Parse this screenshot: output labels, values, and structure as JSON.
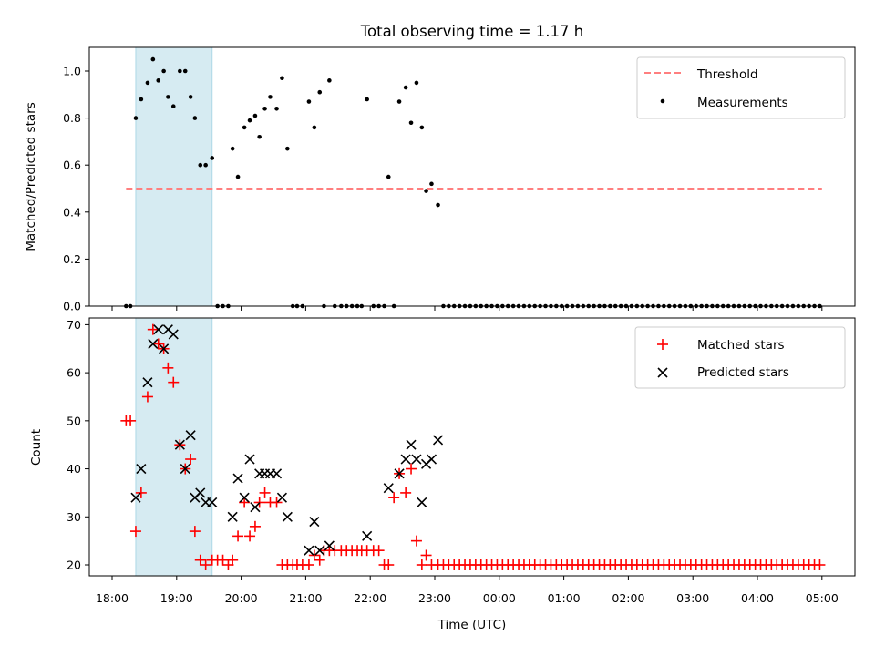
{
  "figure": {
    "title": "Total observing time = 1.17 h"
  },
  "colors": {
    "threshold": "#ff7f7f",
    "measurements": "#000000",
    "matched": "#ff0000",
    "predicted": "#000000",
    "shade": "#add8e6"
  },
  "chart_data": [
    {
      "type": "scatter",
      "ylabel": "Matched/Predicted stars",
      "xlabel": "",
      "ylim": [
        0,
        1.1
      ],
      "yticks": [
        0.0,
        0.2,
        0.4,
        0.6,
        0.8,
        1.0
      ],
      "ytick_labels": [
        "0.0",
        "0.2",
        "0.4",
        "0.6",
        "0.8",
        "1.0"
      ],
      "legend_position": "top-right",
      "legend": [
        "Threshold",
        "Measurements"
      ],
      "shaded_span": [
        "18:22",
        "19:33"
      ],
      "threshold": {
        "name": "Threshold",
        "x_range": [
          "18:13",
          "05:00"
        ],
        "value": 0.5
      },
      "measurements": {
        "name": "Measurements",
        "points": [
          [
            "18:13",
            0.0
          ],
          [
            "18:17",
            0.0
          ],
          [
            "18:22",
            0.8
          ],
          [
            "18:27",
            0.88
          ],
          [
            "18:33",
            0.95
          ],
          [
            "18:38",
            1.05
          ],
          [
            "18:43",
            0.96
          ],
          [
            "18:48",
            1.0
          ],
          [
            "18:52",
            0.89
          ],
          [
            "18:57",
            0.85
          ],
          [
            "19:03",
            1.0
          ],
          [
            "19:08",
            1.0
          ],
          [
            "19:13",
            0.89
          ],
          [
            "19:17",
            0.8
          ],
          [
            "19:22",
            0.6
          ],
          [
            "19:27",
            0.6
          ],
          [
            "19:33",
            0.63
          ],
          [
            "19:38",
            0.0
          ],
          [
            "19:43",
            0.0
          ],
          [
            "19:48",
            0.0
          ],
          [
            "19:52",
            0.67
          ],
          [
            "19:57",
            0.55
          ],
          [
            "20:03",
            0.76
          ],
          [
            "20:08",
            0.79
          ],
          [
            "20:13",
            0.81
          ],
          [
            "20:17",
            0.72
          ],
          [
            "20:22",
            0.84
          ],
          [
            "20:27",
            0.89
          ],
          [
            "20:33",
            0.84
          ],
          [
            "20:38",
            0.97
          ],
          [
            "20:43",
            0.67
          ],
          [
            "20:48",
            0.0
          ],
          [
            "20:52",
            0.0
          ],
          [
            "20:57",
            0.0
          ],
          [
            "21:03",
            0.87
          ],
          [
            "21:08",
            0.76
          ],
          [
            "21:13",
            0.91
          ],
          [
            "21:17",
            0.0
          ],
          [
            "21:22",
            0.96
          ],
          [
            "21:27",
            0.0
          ],
          [
            "21:33",
            0.0
          ],
          [
            "21:38",
            0.0
          ],
          [
            "21:43",
            0.0
          ],
          [
            "21:48",
            0.0
          ],
          [
            "21:52",
            0.0
          ],
          [
            "21:57",
            0.88
          ],
          [
            "22:03",
            0.0
          ],
          [
            "22:08",
            0.0
          ],
          [
            "22:13",
            0.0
          ],
          [
            "22:17",
            0.55
          ],
          [
            "22:22",
            0.0
          ],
          [
            "22:27",
            0.87
          ],
          [
            "22:33",
            0.93
          ],
          [
            "22:38",
            0.78
          ],
          [
            "22:43",
            0.95
          ],
          [
            "22:48",
            0.76
          ],
          [
            "22:52",
            0.49
          ],
          [
            "22:57",
            0.52
          ],
          [
            "23:03",
            0.43
          ]
        ],
        "zero_from": "23:08",
        "zero_to": "05:00",
        "zero_step_min": 5
      }
    },
    {
      "type": "scatter",
      "ylabel": "Count",
      "xlabel": "Time (UTC)",
      "ylim": [
        18,
        71.5
      ],
      "yticks": [
        20,
        30,
        40,
        50,
        60,
        70
      ],
      "ytick_labels": [
        "20",
        "30",
        "40",
        "50",
        "60",
        "70"
      ],
      "xticks": [
        "18:00",
        "19:00",
        "20:00",
        "21:00",
        "22:00",
        "23:00",
        "00:00",
        "01:00",
        "02:00",
        "03:00",
        "04:00",
        "05:00"
      ],
      "legend_position": "top-right",
      "legend": [
        "Matched stars",
        "Predicted stars"
      ],
      "shaded_span": [
        "18:22",
        "19:33"
      ],
      "series": [
        {
          "name": "Matched stars",
          "marker": "plus",
          "points": [
            [
              "18:13",
              50
            ],
            [
              "18:17",
              50
            ],
            [
              "18:22",
              27
            ],
            [
              "18:27",
              35
            ],
            [
              "18:33",
              55
            ],
            [
              "18:38",
              69
            ],
            [
              "18:43",
              66
            ],
            [
              "18:48",
              65
            ],
            [
              "18:52",
              61
            ],
            [
              "18:57",
              58
            ],
            [
              "19:03",
              45
            ],
            [
              "19:08",
              40
            ],
            [
              "19:13",
              42
            ],
            [
              "19:17",
              27
            ],
            [
              "19:22",
              21
            ],
            [
              "19:27",
              20
            ],
            [
              "19:33",
              21
            ],
            [
              "19:38",
              21
            ],
            [
              "19:43",
              21
            ],
            [
              "19:48",
              20
            ],
            [
              "19:52",
              21
            ],
            [
              "19:57",
              26
            ],
            [
              "20:03",
              33
            ],
            [
              "20:08",
              26
            ],
            [
              "20:13",
              28
            ],
            [
              "20:17",
              33
            ],
            [
              "20:22",
              35
            ],
            [
              "20:27",
              33
            ],
            [
              "20:33",
              33
            ],
            [
              "20:38",
              20
            ],
            [
              "20:43",
              20
            ],
            [
              "20:48",
              20
            ],
            [
              "20:52",
              20
            ],
            [
              "20:57",
              20
            ],
            [
              "21:03",
              20
            ],
            [
              "21:08",
              22
            ],
            [
              "21:13",
              21
            ],
            [
              "21:17",
              23
            ],
            [
              "21:22",
              23
            ],
            [
              "21:27",
              23
            ],
            [
              "21:33",
              23
            ],
            [
              "21:38",
              23
            ],
            [
              "21:43",
              23
            ],
            [
              "21:48",
              23
            ],
            [
              "21:52",
              23
            ],
            [
              "21:57",
              23
            ],
            [
              "22:03",
              23
            ],
            [
              "22:08",
              23
            ],
            [
              "22:13",
              20
            ],
            [
              "22:17",
              20
            ],
            [
              "22:22",
              34
            ],
            [
              "22:27",
              39
            ],
            [
              "22:33",
              35
            ],
            [
              "22:38",
              40
            ],
            [
              "22:43",
              25
            ],
            [
              "22:48",
              20
            ],
            [
              "22:52",
              22
            ],
            [
              "22:57",
              20
            ]
          ],
          "constant_from": "23:03",
          "constant_to": "05:00",
          "constant_value": 20,
          "constant_step_min": 5
        },
        {
          "name": "Predicted stars",
          "marker": "cross",
          "points": [
            [
              "18:22",
              34
            ],
            [
              "18:27",
              40
            ],
            [
              "18:33",
              58
            ],
            [
              "18:38",
              66
            ],
            [
              "18:43",
              69
            ],
            [
              "18:48",
              65
            ],
            [
              "18:52",
              69
            ],
            [
              "18:57",
              68
            ],
            [
              "19:03",
              45
            ],
            [
              "19:08",
              40
            ],
            [
              "19:13",
              47
            ],
            [
              "19:17",
              34
            ],
            [
              "19:22",
              35
            ],
            [
              "19:27",
              33
            ],
            [
              "19:33",
              33
            ],
            [
              "19:52",
              30
            ],
            [
              "19:57",
              38
            ],
            [
              "20:03",
              34
            ],
            [
              "20:08",
              42
            ],
            [
              "20:13",
              32
            ],
            [
              "20:17",
              39
            ],
            [
              "20:22",
              39
            ],
            [
              "20:27",
              39
            ],
            [
              "20:33",
              39
            ],
            [
              "20:38",
              34
            ],
            [
              "20:43",
              30
            ],
            [
              "21:03",
              23
            ],
            [
              "21:08",
              29
            ],
            [
              "21:13",
              23
            ],
            [
              "21:22",
              24
            ],
            [
              "21:57",
              26
            ],
            [
              "22:17",
              36
            ],
            [
              "22:27",
              39
            ],
            [
              "22:33",
              42
            ],
            [
              "22:38",
              45
            ],
            [
              "22:43",
              42
            ],
            [
              "22:48",
              33
            ],
            [
              "22:52",
              41
            ],
            [
              "22:57",
              42
            ],
            [
              "23:03",
              46
            ]
          ]
        }
      ]
    }
  ]
}
